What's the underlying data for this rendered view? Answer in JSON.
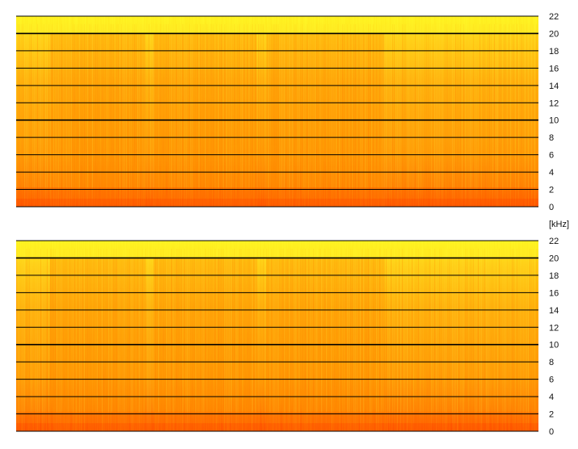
{
  "chart_data": [
    {
      "type": "heatmap",
      "title": "",
      "xlabel": "",
      "ylabel": "[kHz]",
      "ylim": [
        0,
        22
      ],
      "yticks": [
        0,
        2,
        4,
        6,
        8,
        10,
        12,
        14,
        16,
        18,
        20,
        22
      ],
      "axis_side": "right",
      "grid": true,
      "colors": {
        "low": "#ffff22",
        "mid": "#ffa400",
        "high": "#ff4d00"
      }
    },
    {
      "type": "heatmap",
      "title": "",
      "xlabel": "",
      "ylabel": "[kHz]",
      "ylim": [
        0,
        22
      ],
      "yticks": [
        0,
        2,
        4,
        6,
        8,
        10,
        12,
        14,
        16,
        18,
        20,
        22
      ],
      "axis_side": "right",
      "grid": true,
      "colors": {
        "low": "#ffff22",
        "mid": "#ffa400",
        "high": "#ff4d00"
      }
    }
  ],
  "unit_label": "[kHz]"
}
